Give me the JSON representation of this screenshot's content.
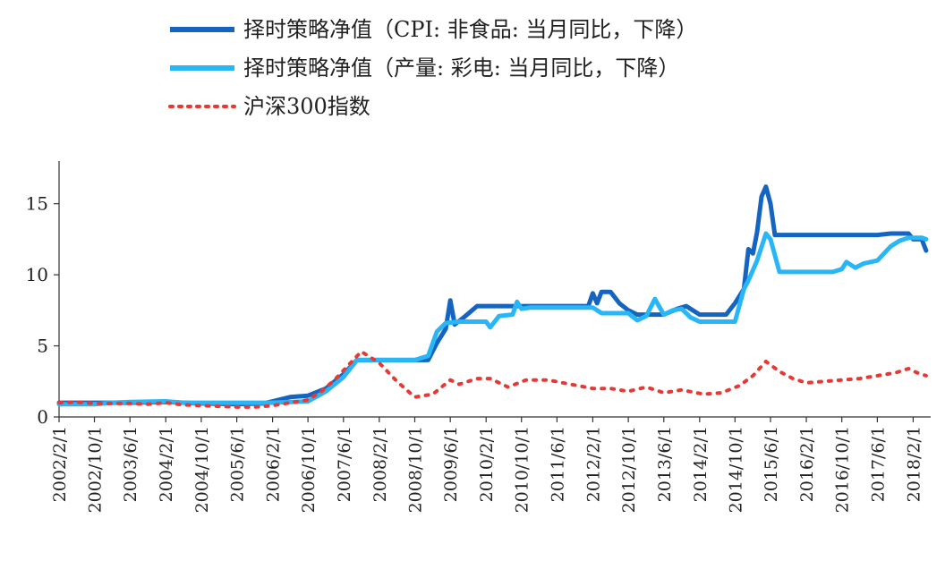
{
  "chart_data": {
    "type": "line",
    "title": "",
    "xlabel": "",
    "ylabel": "",
    "ylim": [
      0,
      18
    ],
    "yticks": [
      0,
      5,
      10,
      15
    ],
    "x_start": "2002/2/1",
    "x_end": "2018/6/1",
    "x_tick_labels": [
      "2002/2/1",
      "2002/10/1",
      "2003/6/1",
      "2004/2/1",
      "2004/10/1",
      "2005/6/1",
      "2006/2/1",
      "2006/10/1",
      "2007/6/1",
      "2008/2/1",
      "2008/10/1",
      "2009/6/1",
      "2010/2/1",
      "2010/10/1",
      "2011/6/1",
      "2012/2/1",
      "2012/10/1",
      "2013/6/1",
      "2014/2/1",
      "2014/10/1",
      "2015/6/1",
      "2016/2/1",
      "2016/10/1",
      "2017/6/1",
      "2018/2/1"
    ],
    "legend_position": "top",
    "grid": false,
    "series": [
      {
        "name": "择时策略净值（CPI: 非食品: 当月同比，下降）",
        "color": "#1565C0",
        "style": "solid",
        "points": [
          [
            "2002/2/1",
            1.0
          ],
          [
            "2002/10/1",
            1.0
          ],
          [
            "2003/6/1",
            1.0
          ],
          [
            "2004/2/1",
            1.05
          ],
          [
            "2004/10/1",
            0.95
          ],
          [
            "2005/6/1",
            0.9
          ],
          [
            "2005/12/1",
            0.95
          ],
          [
            "2006/2/1",
            1.1
          ],
          [
            "2006/6/1",
            1.4
          ],
          [
            "2006/10/1",
            1.5
          ],
          [
            "2007/2/1",
            2.0
          ],
          [
            "2007/6/1",
            3.0
          ],
          [
            "2007/9/1",
            4.0
          ],
          [
            "2008/2/1",
            4.0
          ],
          [
            "2008/6/1",
            4.0
          ],
          [
            "2008/10/1",
            4.0
          ],
          [
            "2009/1/1",
            4.0
          ],
          [
            "2009/3/1",
            5.2
          ],
          [
            "2009/5/1",
            6.2
          ],
          [
            "2009/6/1",
            8.2
          ],
          [
            "2009/7/1",
            6.5
          ],
          [
            "2009/9/1",
            7.0
          ],
          [
            "2009/12/1",
            7.8
          ],
          [
            "2010/2/1",
            7.8
          ],
          [
            "2010/10/1",
            7.8
          ],
          [
            "2011/6/1",
            7.8
          ],
          [
            "2012/1/1",
            7.8
          ],
          [
            "2012/2/1",
            8.7
          ],
          [
            "2012/3/1",
            8.0
          ],
          [
            "2012/4/1",
            8.8
          ],
          [
            "2012/6/1",
            8.8
          ],
          [
            "2012/8/1",
            8.0
          ],
          [
            "2012/10/1",
            7.5
          ],
          [
            "2012/12/1",
            7.2
          ],
          [
            "2013/6/1",
            7.2
          ],
          [
            "2013/9/1",
            7.6
          ],
          [
            "2013/11/1",
            7.8
          ],
          [
            "2014/1/1",
            7.4
          ],
          [
            "2014/2/1",
            7.2
          ],
          [
            "2014/8/1",
            7.2
          ],
          [
            "2014/10/1",
            8.0
          ],
          [
            "2014/12/1",
            9.0
          ],
          [
            "2015/1/1",
            11.8
          ],
          [
            "2015/2/1",
            11.5
          ],
          [
            "2015/3/1",
            13.0
          ],
          [
            "2015/4/1",
            15.5
          ],
          [
            "2015/5/1",
            16.2
          ],
          [
            "2015/6/1",
            15.0
          ],
          [
            "2015/7/1",
            12.8
          ],
          [
            "2015/9/1",
            12.8
          ],
          [
            "2016/2/1",
            12.8
          ],
          [
            "2016/10/1",
            12.8
          ],
          [
            "2017/6/1",
            12.8
          ],
          [
            "2017/9/1",
            12.9
          ],
          [
            "2018/1/1",
            12.9
          ],
          [
            "2018/2/1",
            12.5
          ],
          [
            "2018/4/1",
            12.5
          ],
          [
            "2018/5/1",
            11.7
          ]
        ]
      },
      {
        "name": "择时策略净值（产量: 彩电: 当月同比，下降）",
        "color": "#29B6F6",
        "style": "solid",
        "points": [
          [
            "2002/2/1",
            0.9
          ],
          [
            "2002/10/1",
            0.9
          ],
          [
            "2003/2/1",
            1.0
          ],
          [
            "2003/6/1",
            1.05
          ],
          [
            "2004/2/1",
            1.1
          ],
          [
            "2004/6/1",
            1.0
          ],
          [
            "2004/10/1",
            1.0
          ],
          [
            "2005/6/1",
            1.0
          ],
          [
            "2006/2/1",
            1.0
          ],
          [
            "2006/10/1",
            1.1
          ],
          [
            "2007/2/1",
            1.8
          ],
          [
            "2007/6/1",
            2.8
          ],
          [
            "2007/9/1",
            4.0
          ],
          [
            "2008/2/1",
            4.0
          ],
          [
            "2008/10/1",
            4.0
          ],
          [
            "2009/1/1",
            4.3
          ],
          [
            "2009/3/1",
            6.0
          ],
          [
            "2009/5/1",
            6.6
          ],
          [
            "2009/8/1",
            6.7
          ],
          [
            "2010/2/1",
            6.7
          ],
          [
            "2010/3/1",
            6.3
          ],
          [
            "2010/5/1",
            7.1
          ],
          [
            "2010/8/1",
            7.2
          ],
          [
            "2010/9/1",
            8.1
          ],
          [
            "2010/10/1",
            7.6
          ],
          [
            "2010/12/1",
            7.7
          ],
          [
            "2011/6/1",
            7.7
          ],
          [
            "2012/2/1",
            7.7
          ],
          [
            "2012/4/1",
            7.3
          ],
          [
            "2012/10/1",
            7.3
          ],
          [
            "2012/12/1",
            6.8
          ],
          [
            "2013/2/1",
            7.1
          ],
          [
            "2013/4/1",
            8.3
          ],
          [
            "2013/6/1",
            7.2
          ],
          [
            "2013/8/1",
            7.5
          ],
          [
            "2013/10/1",
            7.6
          ],
          [
            "2013/12/1",
            7.0
          ],
          [
            "2014/2/1",
            6.7
          ],
          [
            "2014/10/1",
            6.7
          ],
          [
            "2014/12/1",
            9.0
          ],
          [
            "2015/1/1",
            9.6
          ],
          [
            "2015/3/1",
            11.0
          ],
          [
            "2015/5/1",
            12.9
          ],
          [
            "2015/6/1",
            12.5
          ],
          [
            "2015/8/1",
            10.2
          ],
          [
            "2016/2/1",
            10.2
          ],
          [
            "2016/8/1",
            10.2
          ],
          [
            "2016/10/1",
            10.4
          ],
          [
            "2016/11/1",
            10.9
          ],
          [
            "2017/1/1",
            10.5
          ],
          [
            "2017/3/1",
            10.8
          ],
          [
            "2017/6/1",
            11.0
          ],
          [
            "2017/9/1",
            12.0
          ],
          [
            "2017/11/1",
            12.4
          ],
          [
            "2018/1/1",
            12.6
          ],
          [
            "2018/4/1",
            12.6
          ],
          [
            "2018/5/1",
            12.5
          ]
        ]
      },
      {
        "name": "沪深300指数",
        "color": "#E53935",
        "style": "dotted",
        "points": [
          [
            "2002/2/1",
            1.0
          ],
          [
            "2002/6/1",
            1.05
          ],
          [
            "2002/10/1",
            0.95
          ],
          [
            "2003/2/1",
            0.95
          ],
          [
            "2003/6/1",
            0.95
          ],
          [
            "2003/10/1",
            0.9
          ],
          [
            "2004/2/1",
            1.0
          ],
          [
            "2004/6/1",
            0.85
          ],
          [
            "2004/10/1",
            0.8
          ],
          [
            "2005/2/1",
            0.75
          ],
          [
            "2005/6/1",
            0.7
          ],
          [
            "2005/10/1",
            0.7
          ],
          [
            "2006/2/1",
            0.8
          ],
          [
            "2006/6/1",
            1.0
          ],
          [
            "2006/10/1",
            1.2
          ],
          [
            "2007/1/1",
            1.8
          ],
          [
            "2007/4/1",
            2.6
          ],
          [
            "2007/7/1",
            3.6
          ],
          [
            "2007/10/1",
            4.6
          ],
          [
            "2008/2/1",
            3.8
          ],
          [
            "2008/6/1",
            2.5
          ],
          [
            "2008/10/1",
            1.4
          ],
          [
            "2009/2/1",
            1.6
          ],
          [
            "2009/6/1",
            2.6
          ],
          [
            "2009/8/1",
            2.3
          ],
          [
            "2009/12/1",
            2.7
          ],
          [
            "2010/3/1",
            2.7
          ],
          [
            "2010/7/1",
            2.1
          ],
          [
            "2010/11/1",
            2.6
          ],
          [
            "2011/4/1",
            2.6
          ],
          [
            "2011/9/1",
            2.3
          ],
          [
            "2012/2/1",
            2.0
          ],
          [
            "2012/6/1",
            2.0
          ],
          [
            "2012/10/1",
            1.8
          ],
          [
            "2013/2/1",
            2.1
          ],
          [
            "2013/6/1",
            1.7
          ],
          [
            "2013/10/1",
            1.9
          ],
          [
            "2014/3/1",
            1.6
          ],
          [
            "2014/7/1",
            1.7
          ],
          [
            "2014/11/1",
            2.2
          ],
          [
            "2015/2/1",
            2.9
          ],
          [
            "2015/5/1",
            3.9
          ],
          [
            "2015/8/1",
            3.2
          ],
          [
            "2015/11/1",
            2.7
          ],
          [
            "2016/2/1",
            2.4
          ],
          [
            "2016/6/1",
            2.5
          ],
          [
            "2016/10/1",
            2.6
          ],
          [
            "2017/2/1",
            2.7
          ],
          [
            "2017/6/1",
            2.9
          ],
          [
            "2017/10/1",
            3.1
          ],
          [
            "2018/1/1",
            3.4
          ],
          [
            "2018/3/1",
            3.1
          ],
          [
            "2018/5/1",
            2.9
          ]
        ]
      }
    ]
  }
}
